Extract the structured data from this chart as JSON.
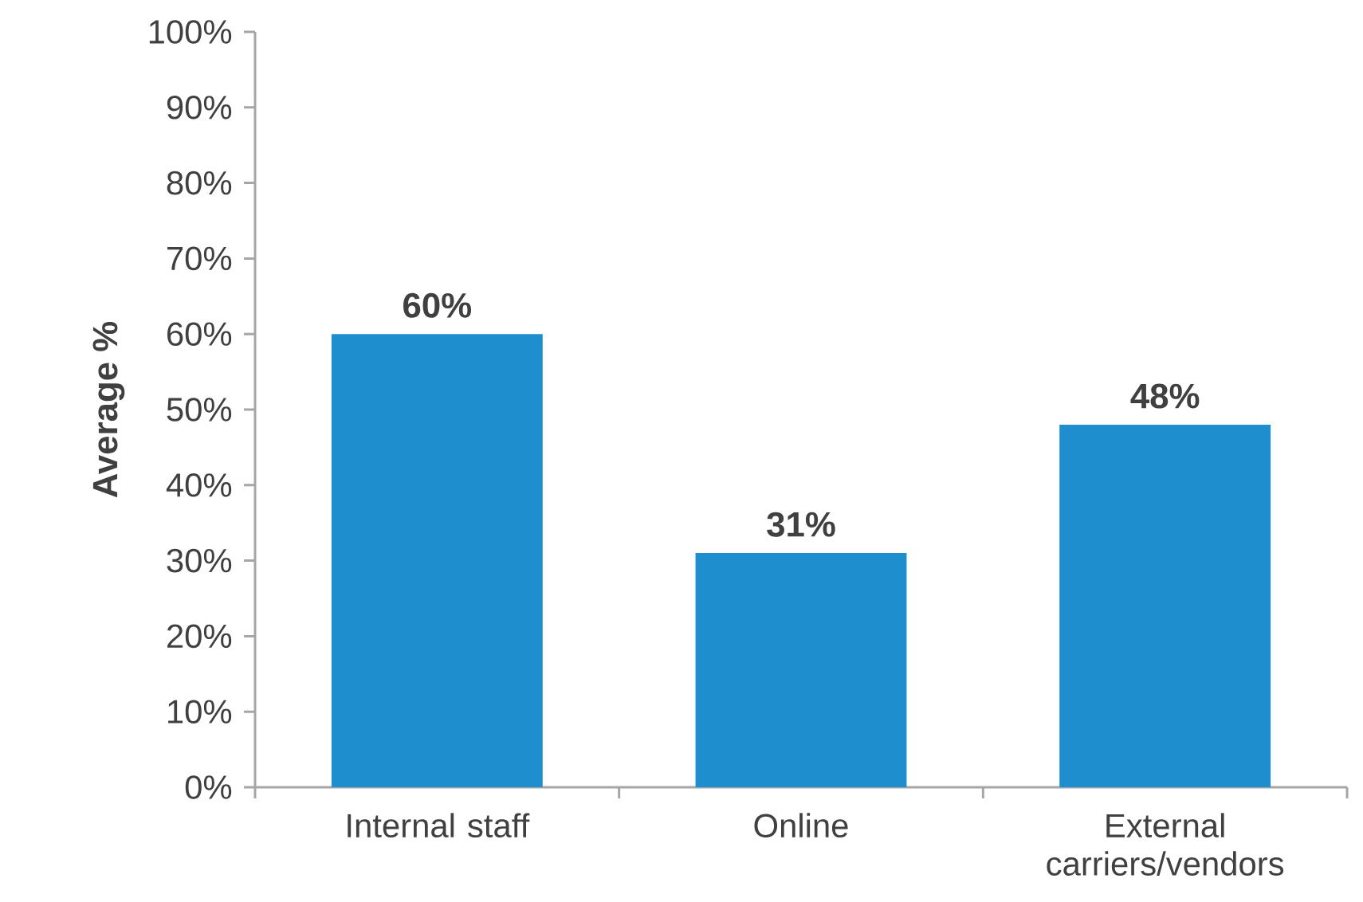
{
  "chart_data": {
    "type": "bar",
    "ylabel": "Average %",
    "categories": [
      "Internal staff",
      "Online",
      "External carriers/vendors"
    ],
    "values": [
      60,
      31,
      48
    ],
    "value_labels": [
      "60%",
      "31%",
      "48%"
    ],
    "color": "#1f8ecf",
    "ylim": [
      0,
      100
    ],
    "yticks": [
      {
        "value": 0,
        "label": "0%"
      },
      {
        "value": 10,
        "label": "10%"
      },
      {
        "value": 20,
        "label": "20%"
      },
      {
        "value": 30,
        "label": "30%"
      },
      {
        "value": 40,
        "label": "40%"
      },
      {
        "value": 50,
        "label": "50%"
      },
      {
        "value": 60,
        "label": "60%"
      },
      {
        "value": 70,
        "label": "70%"
      },
      {
        "value": 80,
        "label": "80%"
      },
      {
        "value": 90,
        "label": "90%"
      },
      {
        "value": 100,
        "label": "100%"
      }
    ],
    "grid": false
  }
}
